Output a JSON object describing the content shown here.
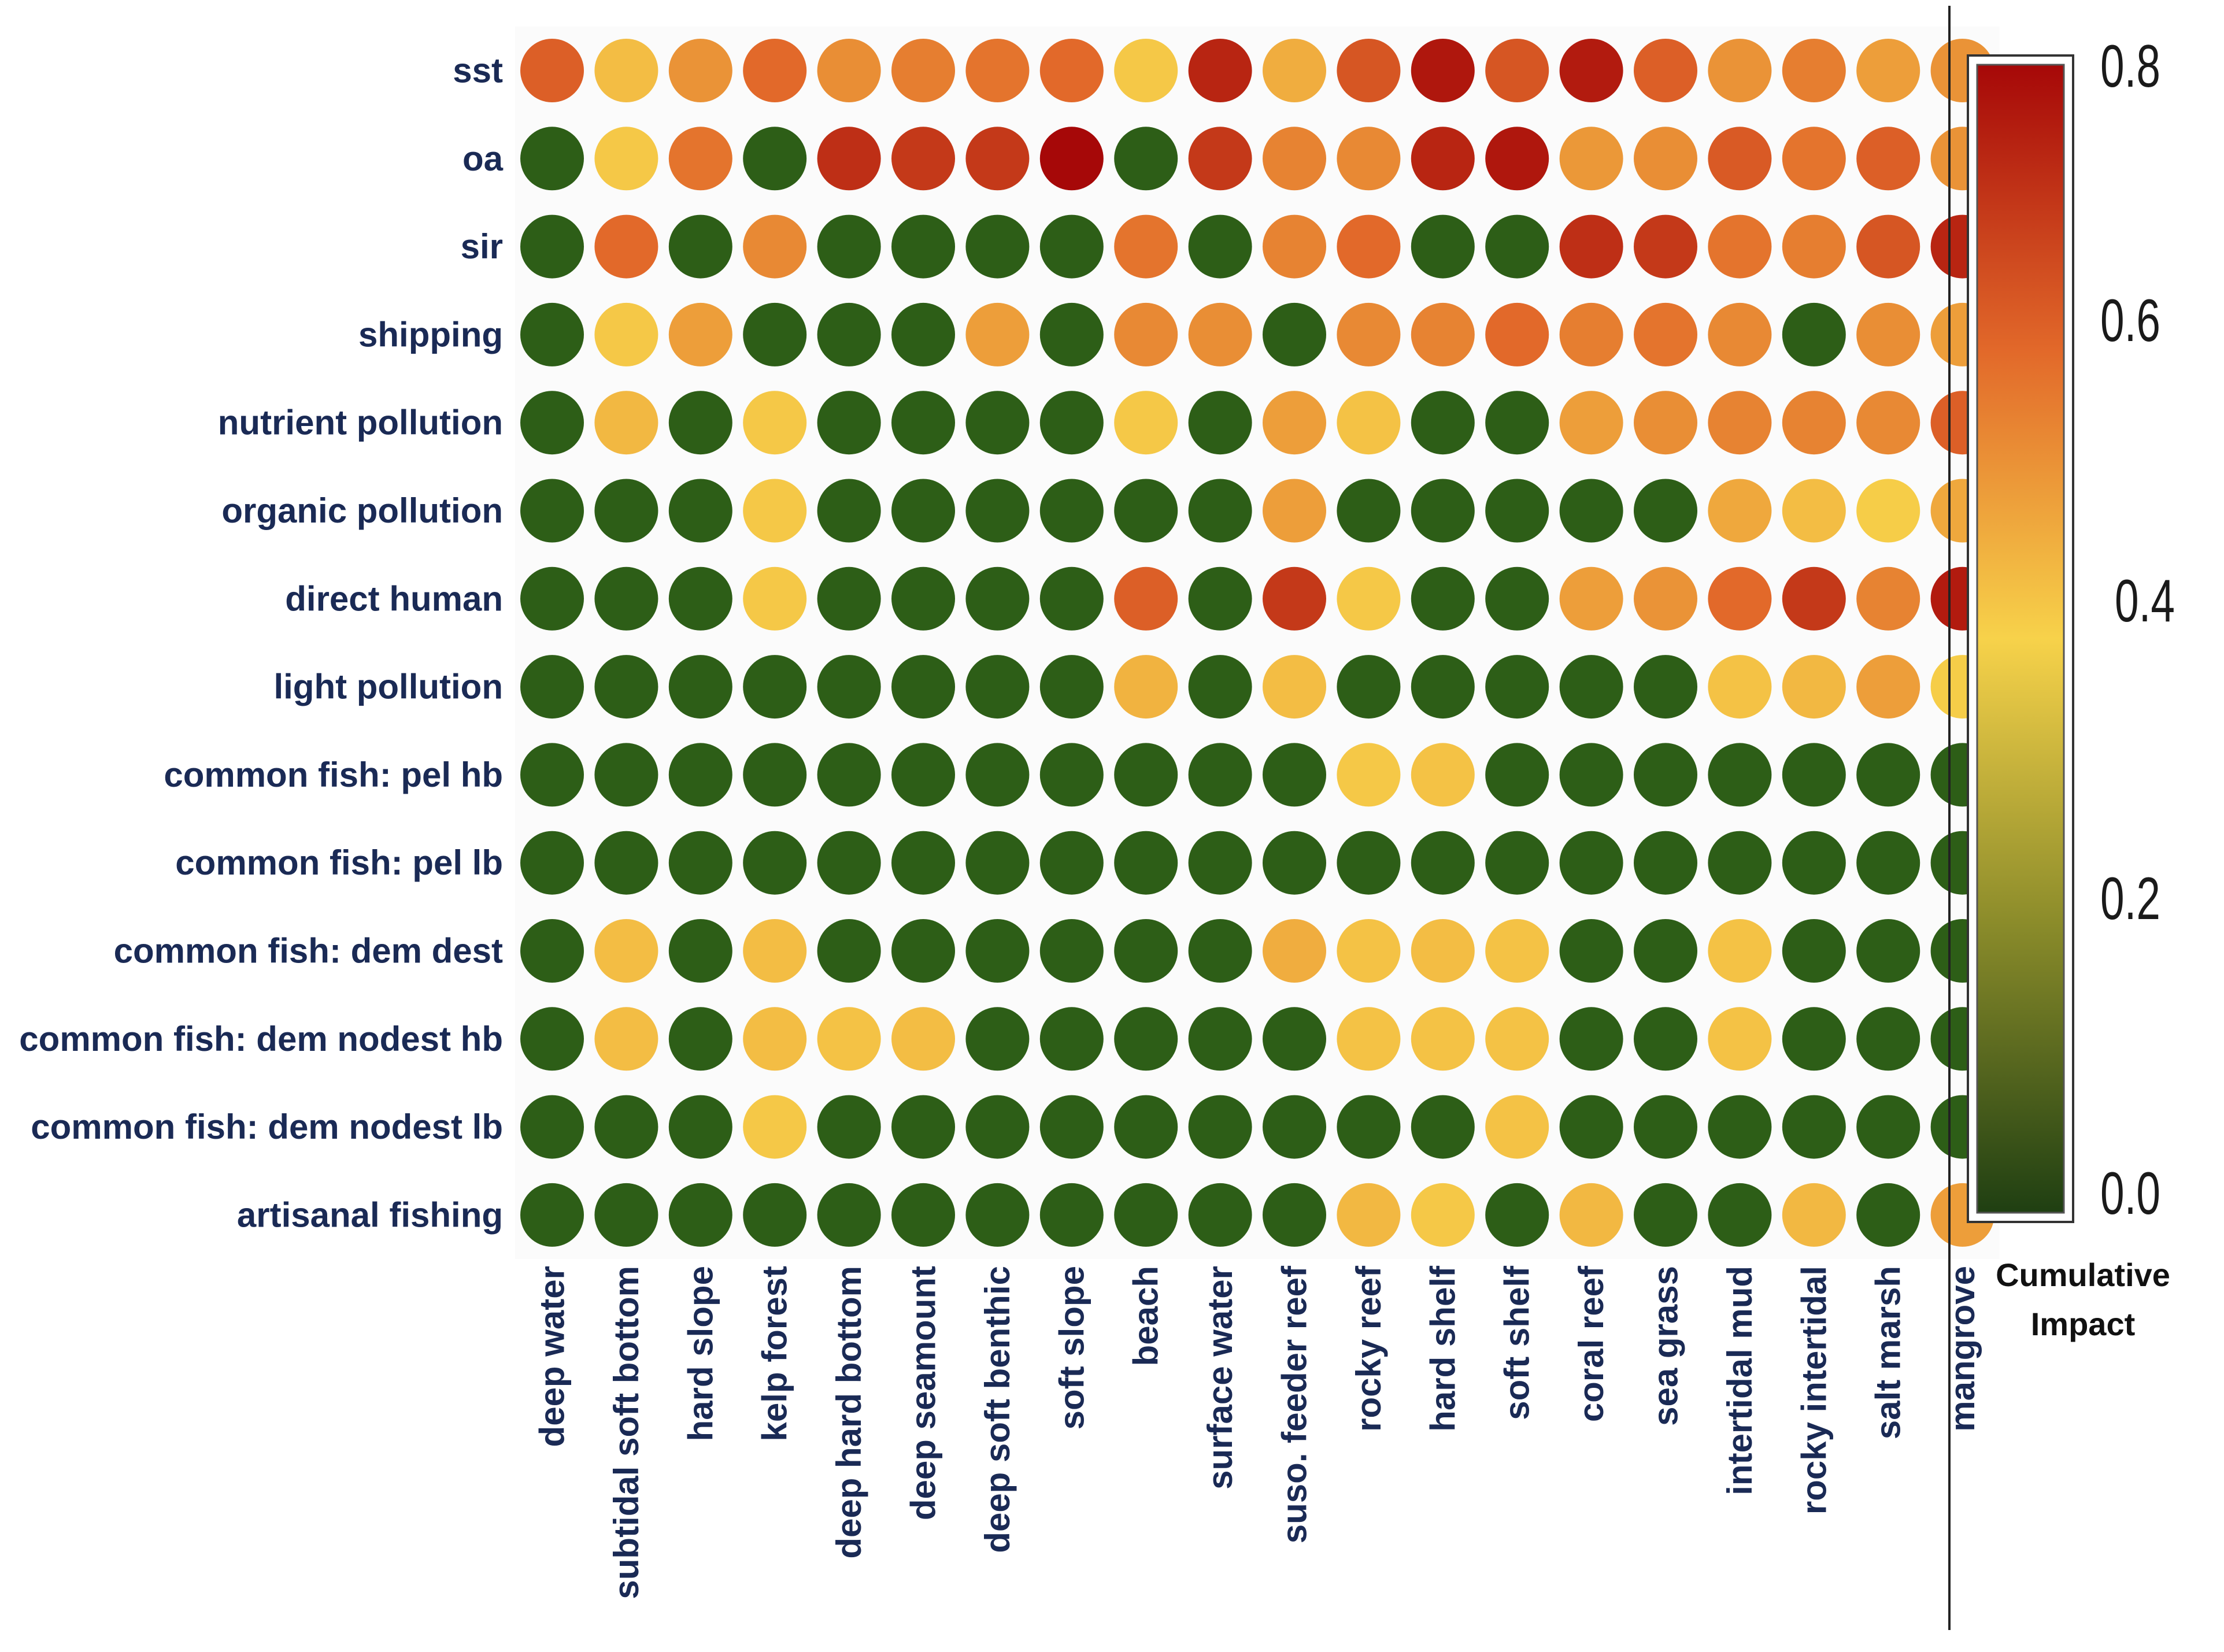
{
  "chart_data": {
    "type": "heatmap",
    "marker": "circle",
    "title": "",
    "rows": [
      "sst",
      "oa",
      "sir",
      "shipping",
      "nutrient pollution",
      "organic pollution",
      "direct human",
      "light pollution",
      "common fish: pel hb",
      "common fish: pel lb",
      "common fish: dem dest",
      "common fish: dem nodest hb",
      "common fish: dem nodest lb",
      "artisanal fishing"
    ],
    "columns": [
      "deep water",
      "subtidal soft bottom",
      "hard slope",
      "kelp forest",
      "deep hard bottom",
      "deep seamount",
      "deep soft benthic",
      "soft slope",
      "beach",
      "surface water",
      "suso. feeder reef",
      "rocky reef",
      "hard shelf",
      "soft shelf",
      "coral reef",
      "sea grass",
      "intertidal mud",
      "rocky intertidal",
      "salt marsh",
      "mangrove"
    ],
    "values": [
      [
        0.62,
        0.44,
        0.52,
        0.6,
        0.53,
        0.56,
        0.58,
        0.6,
        0.42,
        0.74,
        0.47,
        0.64,
        0.77,
        0.64,
        0.76,
        0.62,
        0.52,
        0.56,
        0.5,
        0.52
      ],
      [
        0.0,
        0.42,
        0.58,
        0.0,
        0.72,
        0.7,
        0.7,
        0.8,
        0.0,
        0.7,
        0.55,
        0.54,
        0.74,
        0.77,
        0.51,
        0.53,
        0.63,
        0.58,
        0.62,
        0.52
      ],
      [
        0.0,
        0.6,
        0.0,
        0.54,
        0.0,
        0.0,
        0.0,
        0.0,
        0.58,
        0.0,
        0.55,
        0.6,
        0.0,
        0.0,
        0.72,
        0.7,
        0.58,
        0.56,
        0.64,
        0.74
      ],
      [
        0.0,
        0.42,
        0.5,
        0.0,
        0.0,
        0.0,
        0.5,
        0.0,
        0.54,
        0.53,
        0.0,
        0.54,
        0.55,
        0.6,
        0.56,
        0.58,
        0.54,
        0.0,
        0.53,
        0.5
      ],
      [
        0.0,
        0.45,
        0.0,
        0.42,
        0.0,
        0.0,
        0.0,
        0.0,
        0.42,
        0.0,
        0.5,
        0.43,
        0.0,
        0.0,
        0.5,
        0.53,
        0.55,
        0.55,
        0.54,
        0.62
      ],
      [
        0.0,
        0.0,
        0.0,
        0.42,
        0.0,
        0.0,
        0.0,
        0.0,
        0.0,
        0.0,
        0.5,
        0.0,
        0.0,
        0.0,
        0.0,
        0.0,
        0.48,
        0.44,
        0.41,
        0.48
      ],
      [
        0.0,
        0.0,
        0.0,
        0.42,
        0.0,
        0.0,
        0.0,
        0.0,
        0.62,
        0.0,
        0.7,
        0.42,
        0.0,
        0.0,
        0.5,
        0.52,
        0.6,
        0.7,
        0.55,
        0.76
      ],
      [
        0.0,
        0.0,
        0.0,
        0.0,
        0.0,
        0.0,
        0.0,
        0.0,
        0.46,
        0.0,
        0.44,
        0.0,
        0.0,
        0.0,
        0.0,
        0.0,
        0.43,
        0.45,
        0.5,
        0.41
      ],
      [
        0.0,
        0.0,
        0.0,
        0.0,
        0.0,
        0.0,
        0.0,
        0.0,
        0.0,
        0.0,
        0.0,
        0.42,
        0.43,
        0.0,
        0.0,
        0.0,
        0.0,
        0.0,
        0.0,
        0.0
      ],
      [
        0.0,
        0.0,
        0.0,
        0.0,
        0.0,
        0.0,
        0.0,
        0.0,
        0.0,
        0.0,
        0.0,
        0.0,
        0.0,
        0.0,
        0.0,
        0.0,
        0.0,
        0.0,
        0.0,
        0.0
      ],
      [
        0.0,
        0.44,
        0.0,
        0.44,
        0.0,
        0.0,
        0.0,
        0.0,
        0.0,
        0.0,
        0.47,
        0.43,
        0.44,
        0.43,
        0.0,
        0.0,
        0.43,
        0.0,
        0.0,
        0.0
      ],
      [
        0.0,
        0.44,
        0.0,
        0.44,
        0.43,
        0.44,
        0.0,
        0.0,
        0.0,
        0.0,
        0.0,
        0.43,
        0.43,
        0.43,
        0.0,
        0.0,
        0.43,
        0.0,
        0.0,
        0.0
      ],
      [
        0.0,
        0.0,
        0.0,
        0.42,
        0.0,
        0.0,
        0.0,
        0.0,
        0.0,
        0.0,
        0.0,
        0.0,
        0.0,
        0.43,
        0.0,
        0.0,
        0.0,
        0.0,
        0.0,
        0.0
      ],
      [
        0.0,
        0.0,
        0.0,
        0.0,
        0.0,
        0.0,
        0.0,
        0.0,
        0.0,
        0.0,
        0.0,
        0.45,
        0.42,
        0.0,
        0.45,
        0.0,
        0.0,
        0.45,
        0.0,
        0.5
      ]
    ],
    "colorbar": {
      "title_line1": "Cumulative",
      "title_line2": "Impact",
      "ticks": [
        "0.0",
        "0.2",
        "0.4",
        "0.6",
        "0.8"
      ],
      "range": [
        0,
        0.8
      ],
      "colors": [
        "#1f3f12",
        "#8a8b2a",
        "#f7d24a",
        "#e2692a",
        "#a60808"
      ]
    },
    "grid": false,
    "legend": "right"
  }
}
